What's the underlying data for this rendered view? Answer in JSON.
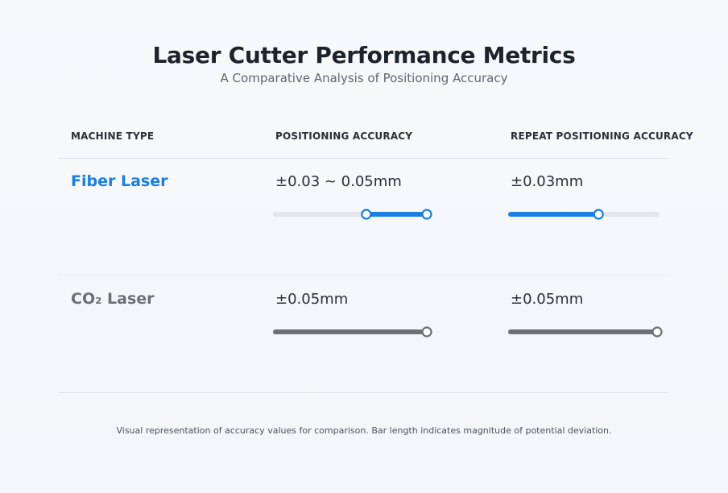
{
  "title": "Laser Cutter Performance Metrics",
  "subtitle": "A Comparative Analysis of Positioning Accuracy",
  "columns": {
    "machine": "MACHINE TYPE",
    "positioning": "POSITIONING ACCURACY",
    "repeat": "REPEAT POSITIONING ACCURACY"
  },
  "rows": [
    {
      "name": "Fiber Laser",
      "positioning_text": "±0.03 ~ 0.05mm",
      "repeat_text": "±0.03mm"
    },
    {
      "name": "CO₂ Laser",
      "positioning_text": "±0.05mm",
      "repeat_text": "±0.05mm"
    }
  ],
  "footnote": "Visual representation of accuracy values for comparison. Bar length indicates magnitude of potential deviation.",
  "colors": {
    "fiber": "#1a7fe0",
    "co2": "#6b7077",
    "track": "#e3e6ea"
  },
  "chart_data": {
    "type": "bar",
    "unit": "mm",
    "scale_max": 0.05,
    "categories": [
      "Fiber Laser",
      "CO₂ Laser"
    ],
    "series": [
      {
        "name": "POSITIONING ACCURACY",
        "ranges": [
          [
            0.03,
            0.05
          ],
          [
            0,
            0.05
          ]
        ]
      },
      {
        "name": "REPEAT POSITIONING ACCURACY",
        "ranges": [
          [
            0,
            0.03
          ],
          [
            0,
            0.05
          ]
        ]
      }
    ]
  }
}
